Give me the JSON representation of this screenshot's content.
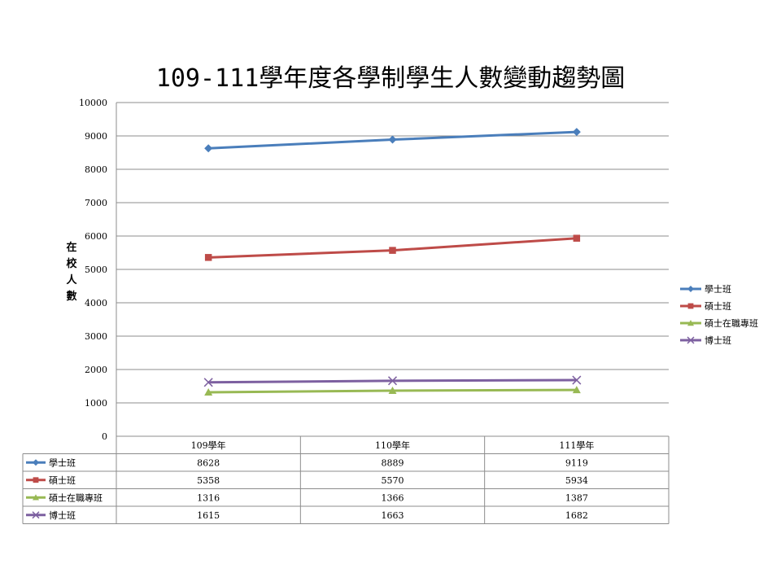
{
  "chart_data": {
    "type": "line",
    "title": "109-111學年度各學制學生人數變動趨勢圖",
    "ylabel": "在校人數",
    "xlabel": "",
    "categories": [
      "109學年",
      "110學年",
      "111學年"
    ],
    "ylim": [
      0,
      10000
    ],
    "yticks": [
      0,
      1000,
      2000,
      3000,
      4000,
      5000,
      6000,
      7000,
      8000,
      9000,
      10000
    ],
    "grid": true,
    "legend_position": "right",
    "series": [
      {
        "name": "學士班",
        "values": [
          8628,
          8889,
          9119
        ],
        "color": "#4a7ebb",
        "marker": "diamond"
      },
      {
        "name": "碩士班",
        "values": [
          5358,
          5570,
          5934
        ],
        "color": "#be4b48",
        "marker": "square"
      },
      {
        "name": "碩士在職專班",
        "values": [
          1316,
          1366,
          1387
        ],
        "color": "#98b954",
        "marker": "triangle"
      },
      {
        "name": "博士班",
        "values": [
          1615,
          1663,
          1682
        ],
        "color": "#7d60a0",
        "marker": "x"
      }
    ],
    "data_table": true
  }
}
